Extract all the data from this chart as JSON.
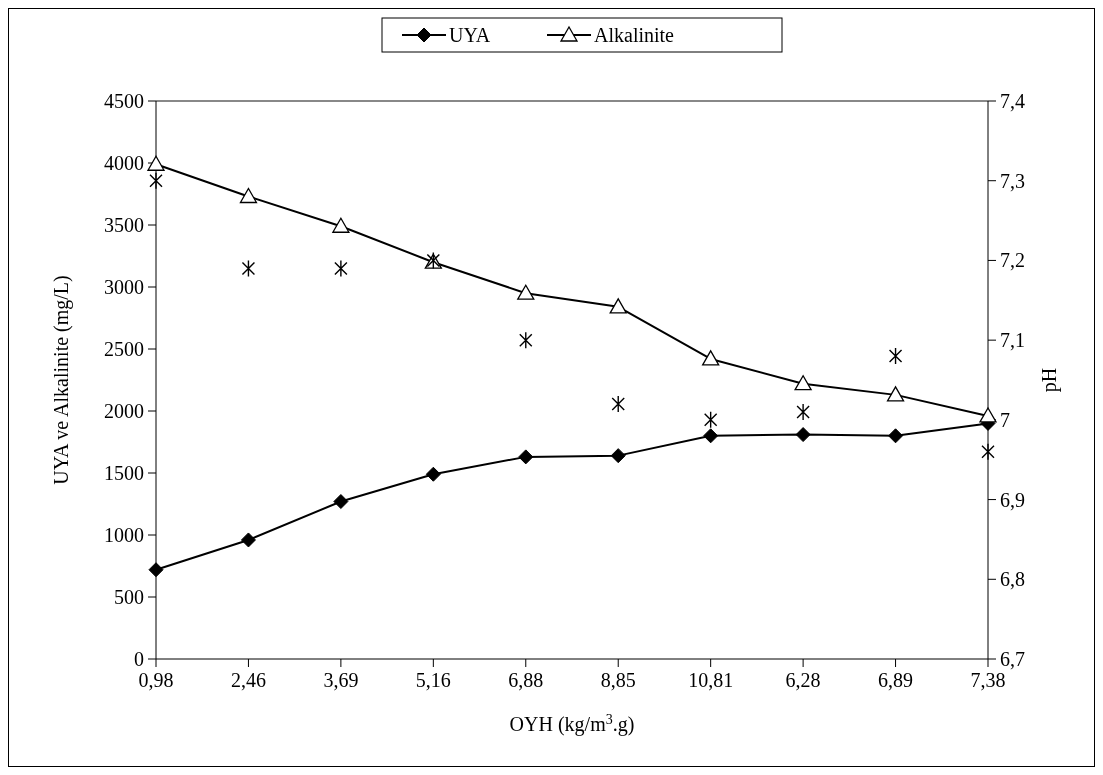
{
  "chart_data": {
    "type": "line",
    "xlabel": "OYH (kg/m$^{3}$.g)",
    "ylabel": "UYA ve Alkalinite (mg/L)",
    "y2label": "pH",
    "categories": [
      "0,98",
      "2,46",
      "3,69",
      "5,16",
      "6,88",
      "8,85",
      "10,81",
      "6,28",
      "6,89",
      "7,38"
    ],
    "series": [
      {
        "name": "UYA",
        "color": "#000000",
        "marker": "diamond",
        "values": [
          720,
          960,
          1270,
          1490,
          1630,
          1640,
          1800,
          1810,
          1800,
          1900
        ]
      },
      {
        "name": "Alkalinite",
        "color": "#000000",
        "marker": "triangle",
        "values": [
          3990,
          3730,
          3490,
          3200,
          2950,
          2840,
          2420,
          2220,
          2130,
          1960
        ]
      },
      {
        "type": "scatter",
        "axis": "y2",
        "color": "#000000",
        "marker": "cross",
        "values": [
          7.3,
          7.19,
          7.19,
          7.2,
          7.1,
          7.02,
          7.0,
          7.01,
          7.08,
          6.96
        ]
      }
    ],
    "ylim": [
      0,
      4500
    ],
    "yticks": [
      0,
      500,
      1000,
      1500,
      2000,
      2500,
      3000,
      3500,
      4000,
      4500
    ],
    "y2lim": [
      6.7,
      7.4
    ],
    "y2ticks": [
      {
        "value": 6.7,
        "label": "6,7"
      },
      {
        "value": 6.8,
        "label": "6,8"
      },
      {
        "value": 6.9,
        "label": "6,9"
      },
      {
        "value": 7,
        "label": "7"
      },
      {
        "value": 7.1,
        "label": "7,1"
      },
      {
        "value": 7.2,
        "label": "7,2"
      },
      {
        "value": 7.3,
        "label": "7,3"
      },
      {
        "value": 7.4,
        "label": "7,4"
      }
    ],
    "legend": "top",
    "line_style": "solid"
  }
}
